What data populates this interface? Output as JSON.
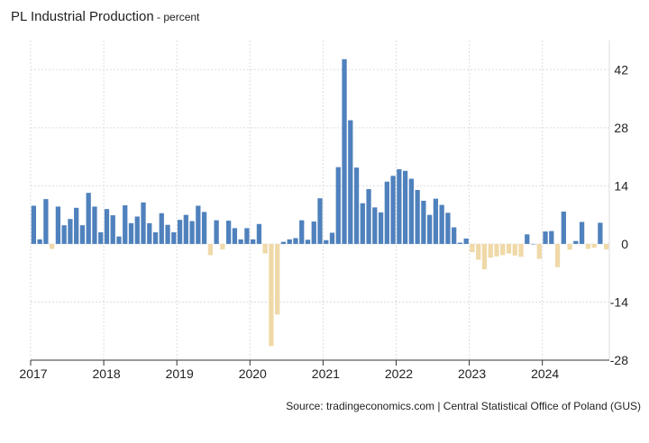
{
  "header": {
    "title": "PL Industrial Production",
    "unit": " - percent"
  },
  "footer": {
    "source": "Source: tradingeconomics.com | Central Statistical Office of Poland (GUS)"
  },
  "colors": {
    "positive": "#4f81bd",
    "negative": "#f0d9a8",
    "grid": "#dddddd",
    "axis": "#333333"
  },
  "chart_data": {
    "type": "bar",
    "title": "PL Industrial Production",
    "unit": "percent",
    "x_labels": [
      "2017",
      "2018",
      "2019",
      "2020",
      "2021",
      "2022",
      "2023",
      "2024"
    ],
    "y_ticks": [
      42,
      28,
      14,
      0,
      -14,
      -28
    ],
    "ylim": [
      -28,
      49
    ],
    "start": "2017-01",
    "grid": true,
    "x_range": [
      "2017-01",
      "2024-11"
    ],
    "values": [
      9.2,
      1.1,
      10.8,
      -1.2,
      9.0,
      4.5,
      6.0,
      8.7,
      4.5,
      12.3,
      9.0,
      2.8,
      8.4,
      6.9,
      1.8,
      9.3,
      5.0,
      6.6,
      10.0,
      5.0,
      2.8,
      7.4,
      4.6,
      2.8,
      5.8,
      7.0,
      5.5,
      9.2,
      7.7,
      -2.7,
      5.7,
      -1.3,
      5.6,
      3.8,
      1.1,
      3.8,
      1.1,
      4.8,
      -2.3,
      -24.6,
      -17.0,
      0.5,
      1.1,
      1.4,
      5.7,
      1.0,
      5.4,
      11.0,
      0.9,
      2.7,
      18.5,
      44.5,
      29.8,
      18.4,
      9.8,
      13.2,
      8.8,
      7.6,
      15.0,
      16.4,
      18.0,
      17.6,
      15.7,
      13.0,
      10.4,
      7.0,
      10.9,
      9.4,
      7.5,
      4.0,
      0.3,
      1.3,
      -2.0,
      -3.8,
      -6.1,
      -3.3,
      -3.0,
      -2.7,
      -2.3,
      -2.8,
      -3.1,
      2.3,
      0.0,
      -3.6,
      3.0,
      3.1,
      -5.6,
      7.8,
      -1.4,
      0.7,
      5.3,
      -1.2,
      -0.9,
      5.1,
      -1.3
    ]
  }
}
